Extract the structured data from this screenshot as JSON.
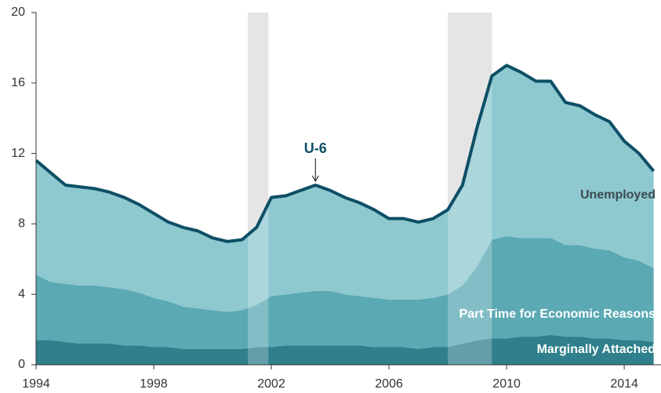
{
  "chart_data": {
    "type": "stacked_area",
    "annotation": "U-6",
    "annotation_x": 2003.5,
    "x": [
      1994,
      1994.5,
      1995,
      1995.5,
      1996,
      1996.5,
      1997,
      1997.5,
      1998,
      1998.5,
      1999,
      1999.5,
      2000,
      2000.5,
      2001,
      2001.5,
      2002,
      2002.5,
      2003,
      2003.5,
      2004,
      2004.5,
      2005,
      2005.5,
      2006,
      2006.5,
      2007,
      2007.5,
      2008,
      2008.5,
      2009,
      2009.5,
      2010,
      2010.5,
      2011,
      2011.5,
      2012,
      2012.5,
      2013,
      2013.5,
      2014,
      2014.5,
      2015
    ],
    "series": [
      {
        "name": "Marginally Attached",
        "color": "#2f7f8c",
        "values": [
          1.4,
          1.4,
          1.3,
          1.2,
          1.2,
          1.2,
          1.1,
          1.1,
          1.0,
          1.0,
          0.9,
          0.9,
          0.9,
          0.9,
          0.9,
          1.0,
          1.0,
          1.1,
          1.1,
          1.1,
          1.1,
          1.1,
          1.1,
          1.0,
          1.0,
          1.0,
          0.9,
          1.0,
          1.0,
          1.2,
          1.4,
          1.5,
          1.5,
          1.6,
          1.6,
          1.7,
          1.6,
          1.6,
          1.5,
          1.5,
          1.4,
          1.4,
          1.3
        ]
      },
      {
        "name": "Part Time for Economic Reasons",
        "color": "#5aa9b3",
        "values": [
          3.7,
          3.3,
          3.3,
          3.3,
          3.3,
          3.2,
          3.2,
          3.0,
          2.8,
          2.6,
          2.4,
          2.3,
          2.2,
          2.1,
          2.2,
          2.4,
          2.9,
          2.9,
          3.0,
          3.1,
          3.1,
          2.9,
          2.8,
          2.8,
          2.7,
          2.7,
          2.8,
          2.8,
          3.0,
          3.3,
          4.2,
          5.6,
          5.8,
          5.6,
          5.6,
          5.5,
          5.2,
          5.2,
          5.1,
          5.0,
          4.7,
          4.5,
          4.2
        ]
      },
      {
        "name": "Unemployed",
        "color": "#8ec9d0",
        "values": [
          6.5,
          6.2,
          5.6,
          5.6,
          5.5,
          5.4,
          5.2,
          5.0,
          4.8,
          4.5,
          4.5,
          4.4,
          4.1,
          4.0,
          4.0,
          4.4,
          5.6,
          5.6,
          5.8,
          6.0,
          5.7,
          5.5,
          5.3,
          5.0,
          4.6,
          4.6,
          4.4,
          4.5,
          4.8,
          5.7,
          7.9,
          9.3,
          9.7,
          9.4,
          8.9,
          8.9,
          8.1,
          7.9,
          7.6,
          7.3,
          6.6,
          6.1,
          5.5
        ]
      }
    ],
    "line_color": "#0d4f66",
    "recessions": [
      [
        2001.2,
        2001.9
      ],
      [
        2008.0,
        2009.5
      ]
    ],
    "xlim": [
      1994,
      2015.25
    ],
    "xticks": [
      1994,
      1998,
      2002,
      2006,
      2010,
      2014
    ],
    "ylim": [
      0,
      20
    ],
    "yticks": [
      0,
      4,
      8,
      12,
      16,
      20
    ]
  }
}
